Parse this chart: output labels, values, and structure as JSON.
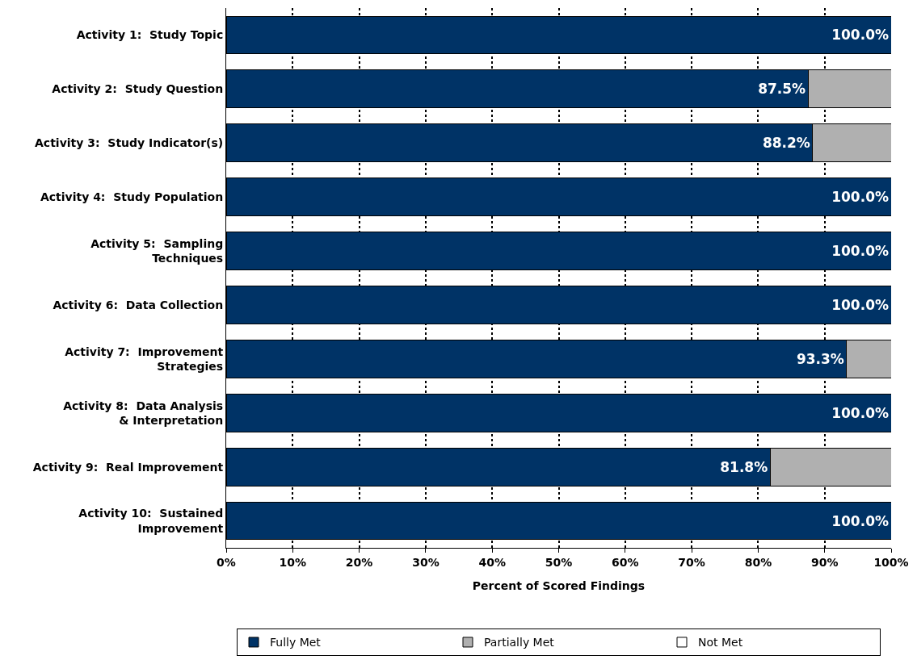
{
  "chart_data": {
    "type": "bar",
    "orientation": "horizontal",
    "stacked": true,
    "xlabel": "Percent of Scored Findings",
    "categories": [
      "Activity 1:  Study Topic",
      "Activity 2:  Study Question",
      "Activity 3:  Study Indicator(s)",
      "Activity 4:  Study Population",
      "Activity 5:  Sampling Techniques",
      "Activity 6:  Data Collection",
      "Activity 7:  Improvement Strategies",
      "Activity 8:  Data Analysis & Interpretation",
      "Activity 9:  Real Improvement",
      "Activity 10:  Sustained Improvement"
    ],
    "series": [
      {
        "name": "Fully Met",
        "color": "#003366",
        "values": [
          100,
          87.5,
          88.2,
          100,
          100,
          100,
          93.3,
          100,
          81.8,
          100
        ],
        "value_labels": [
          "100.0%",
          "87.5%",
          "88.2%",
          "100.0%",
          "100.0%",
          "100.0%",
          "93.3%",
          "100.0%",
          "81.8%",
          "100.0%"
        ]
      },
      {
        "name": "Partially Met",
        "color": "#b0b0b0",
        "values": [
          0,
          12.5,
          11.8,
          0,
          0,
          0,
          6.7,
          0,
          18.2,
          0
        ]
      },
      {
        "name": "Not Met",
        "color": "#ffffff",
        "values": [
          0,
          0,
          0,
          0,
          0,
          0,
          0,
          0,
          0,
          0
        ]
      }
    ],
    "xlim": [
      0,
      100
    ],
    "xticks": [
      {
        "value": 0,
        "label": "0%"
      },
      {
        "value": 10,
        "label": "10%"
      },
      {
        "value": 20,
        "label": "20%"
      },
      {
        "value": 30,
        "label": "30%"
      },
      {
        "value": 40,
        "label": "40%"
      },
      {
        "value": 50,
        "label": "50%"
      },
      {
        "value": 60,
        "label": "60%"
      },
      {
        "value": 70,
        "label": "70%"
      },
      {
        "value": 80,
        "label": "80%"
      },
      {
        "value": 90,
        "label": "90%"
      },
      {
        "value": 100,
        "label": "100%"
      }
    ],
    "grid": "x",
    "legend": "bottom"
  }
}
